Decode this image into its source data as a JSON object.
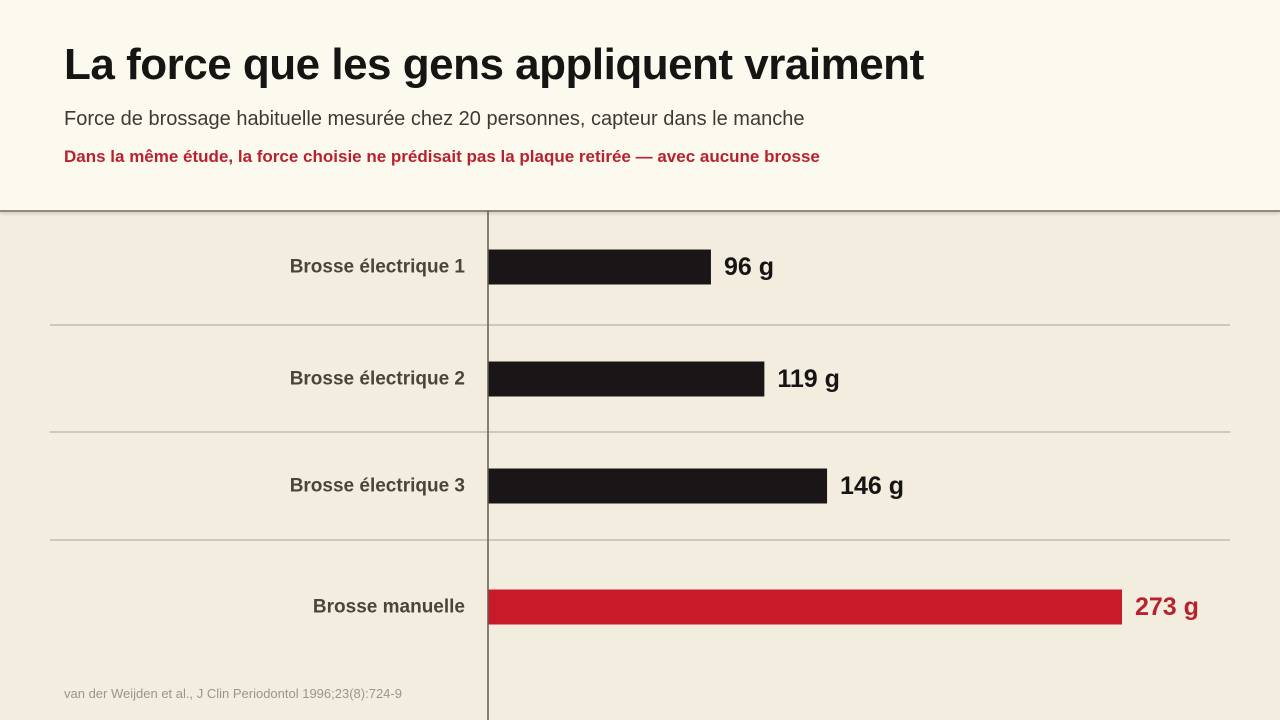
{
  "header": {
    "title": "La force que les gens appliquent vraiment",
    "subtitle": "Force de brossage habituelle mesurée chez 20 personnes, capteur dans le manche",
    "note": "Dans la même étude, la force choisie ne prédisait pas la plaque retirée — avec aucune brosse"
  },
  "source": "van der Weijden et al., J Clin Periodontol 1996;23(8):724-9",
  "colors": {
    "bar_default": "#1a1618",
    "bar_highlight": "#c81a28",
    "label_text": "#4a443b",
    "value_text": "#171414",
    "highlight_text": "#b8222e"
  },
  "chart_data": {
    "type": "bar",
    "orientation": "horizontal",
    "categories": [
      "Brosse électrique 1",
      "Brosse électrique 2",
      "Brosse électrique 3",
      "Brosse manuelle"
    ],
    "values": [
      96,
      119,
      146,
      273
    ],
    "value_labels": [
      "96 g",
      "119 g",
      "146 g",
      "273 g"
    ],
    "highlight": [
      false,
      false,
      false,
      true
    ],
    "unit": "g",
    "xlim": [
      0,
      273
    ],
    "grid": false
  }
}
